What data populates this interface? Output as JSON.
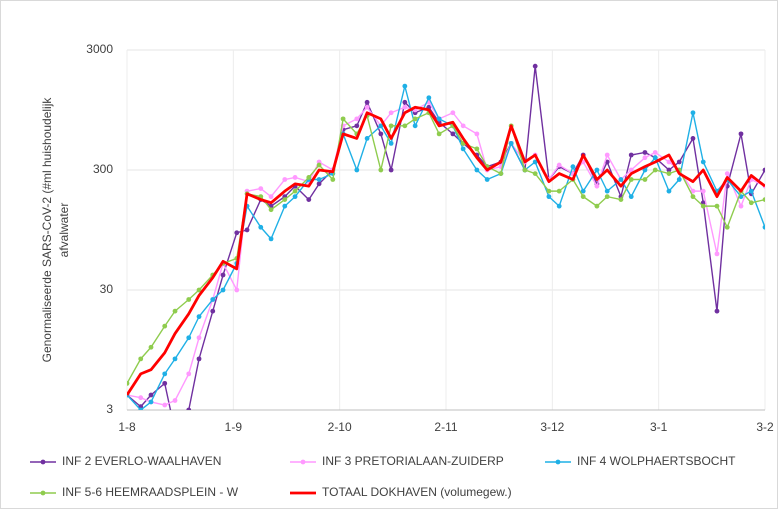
{
  "chart_data": {
    "type": "line",
    "ylabel": [
      "Genormaliseerde SARS-CoV-2 (#ml huishoudelijk",
      "afvalwater"
    ],
    "x": [
      0,
      4,
      7,
      11,
      14,
      18,
      21,
      25,
      28,
      32,
      35,
      39,
      42,
      46,
      49,
      53,
      56,
      60,
      63,
      67,
      70,
      74,
      77,
      81,
      84,
      88,
      91,
      95,
      98,
      102,
      105,
      109,
      112,
      116,
      119,
      123,
      126,
      130,
      133,
      137,
      140,
      144,
      147,
      151,
      154,
      158,
      161,
      165,
      168,
      172,
      175,
      179,
      182,
      186
    ],
    "xlim": [
      0,
      186
    ],
    "xticks": [
      {
        "value": 0,
        "label": "1-8"
      },
      {
        "value": 31,
        "label": "1-9"
      },
      {
        "value": 62,
        "label": "2-10"
      },
      {
        "value": 93,
        "label": "2-11"
      },
      {
        "value": 124,
        "label": "3-12"
      },
      {
        "value": 155,
        "label": "3-1"
      },
      {
        "value": 186,
        "label": "3-2"
      }
    ],
    "ylim": [
      3,
      3000
    ],
    "yticks": [
      3,
      30,
      300,
      3000
    ],
    "log_scale": true,
    "grid": true,
    "series": [
      {
        "name": "INF 2 EVERLO-WAALHAVEN",
        "color": "#7030a0",
        "values": [
          4,
          3.2,
          4,
          5,
          2,
          3,
          8,
          20,
          40,
          90,
          95,
          170,
          150,
          180,
          220,
          170,
          230,
          300,
          650,
          700,
          1100,
          600,
          300,
          1100,
          900,
          1000,
          750,
          600,
          500,
          400,
          320,
          350,
          500,
          300,
          2200,
          250,
          320,
          280,
          400,
          230,
          350,
          180,
          400,
          420,
          380,
          300,
          350,
          550,
          160,
          20,
          220,
          600,
          190,
          300
        ]
      },
      {
        "name": "INF 3 PRETORIALAAN-ZUIDERP",
        "color": "#ff99ff",
        "values": [
          4,
          3.8,
          3.5,
          3.3,
          3.6,
          6,
          12,
          25,
          50,
          30,
          200,
          210,
          180,
          250,
          260,
          240,
          350,
          300,
          700,
          800,
          1000,
          700,
          900,
          1000,
          950,
          1100,
          800,
          900,
          700,
          600,
          300,
          320,
          500,
          350,
          400,
          250,
          330,
          280,
          350,
          220,
          400,
          250,
          300,
          380,
          420,
          350,
          300,
          200,
          200,
          60,
          280,
          150,
          250,
          220
        ]
      },
      {
        "name": "INF 4 WOLPHAERTSBOCHT",
        "color": "#1fb0e6",
        "values": [
          4,
          3,
          3.5,
          6,
          8,
          12,
          18,
          25,
          30,
          50,
          150,
          100,
          80,
          150,
          180,
          250,
          250,
          280,
          600,
          300,
          550,
          700,
          500,
          1500,
          700,
          1200,
          800,
          700,
          450,
          300,
          250,
          280,
          500,
          300,
          350,
          180,
          150,
          320,
          200,
          300,
          200,
          250,
          180,
          300,
          380,
          200,
          250,
          900,
          350,
          200,
          250,
          180,
          200,
          100
        ]
      },
      {
        "name": "INF 5-6 HEEMRAADSPLEIN - W",
        "color": "#8fcc4e",
        "values": [
          5,
          8,
          10,
          15,
          20,
          25,
          30,
          40,
          50,
          55,
          190,
          180,
          140,
          170,
          200,
          260,
          330,
          250,
          800,
          600,
          850,
          300,
          700,
          700,
          800,
          900,
          600,
          700,
          500,
          450,
          320,
          280,
          700,
          300,
          280,
          200,
          200,
          250,
          180,
          150,
          180,
          170,
          250,
          250,
          300,
          280,
          300,
          180,
          150,
          150,
          100,
          200,
          160,
          170
        ]
      },
      {
        "name": "TOTAAL DOKHAVEN (volumegew.)",
        "color": "#ff0000",
        "values": [
          4,
          6,
          6.5,
          9,
          13,
          19,
          27,
          38,
          52,
          45,
          190,
          170,
          160,
          200,
          230,
          220,
          300,
          290,
          600,
          550,
          900,
          800,
          550,
          900,
          1000,
          950,
          700,
          750,
          550,
          380,
          300,
          350,
          700,
          350,
          400,
          240,
          280,
          250,
          400,
          250,
          300,
          220,
          280,
          320,
          350,
          400,
          280,
          240,
          300,
          180,
          260,
          200,
          270,
          220
        ]
      }
    ]
  }
}
